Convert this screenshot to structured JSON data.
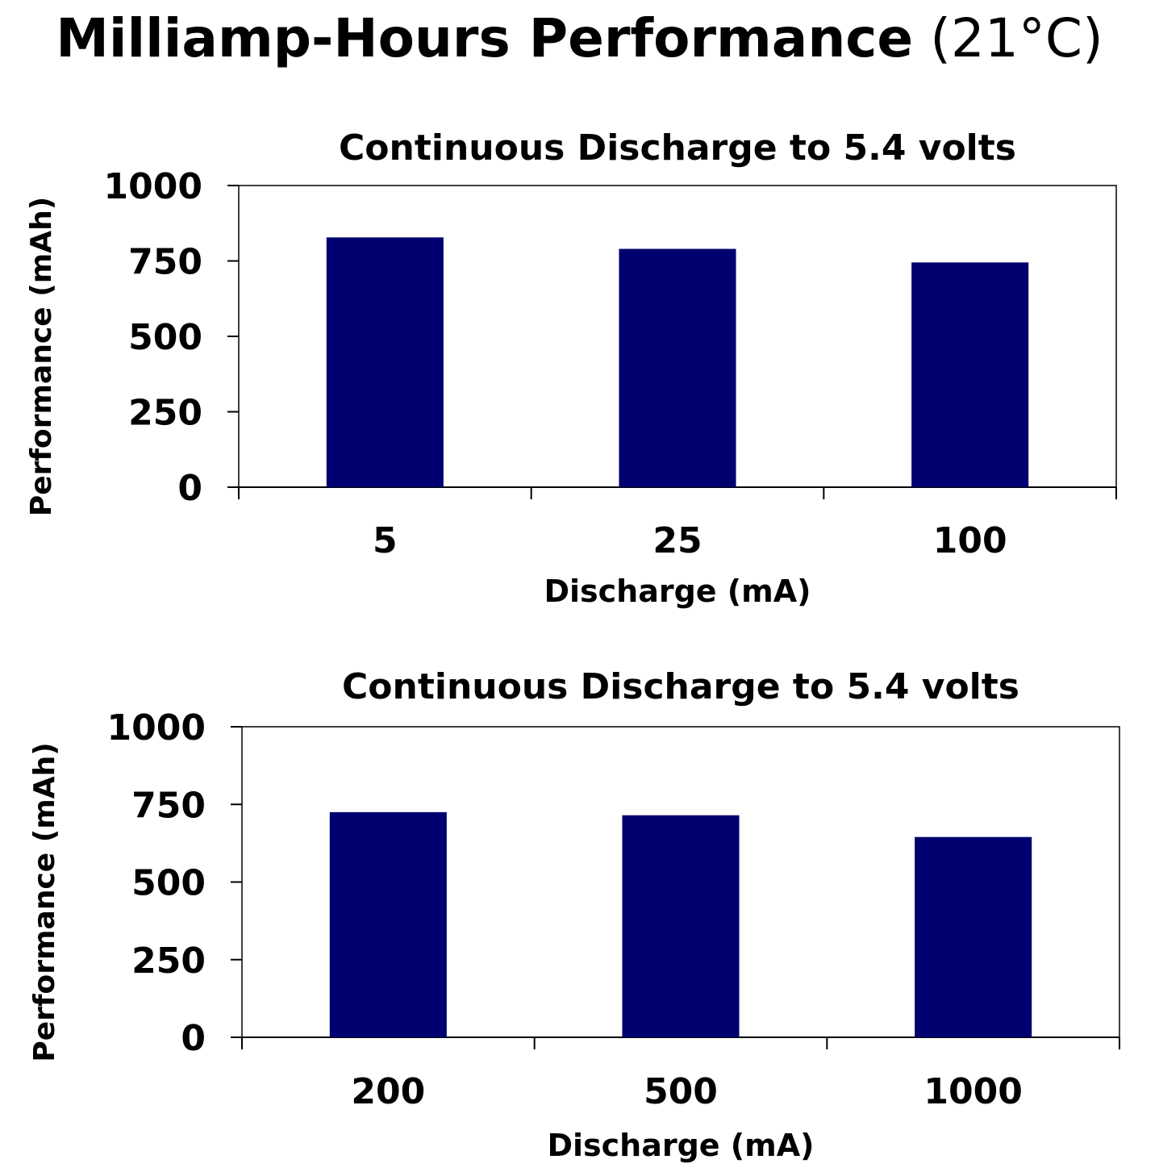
{
  "page_title": {
    "main": "Milliamp-Hours Performance",
    "suffix": "(21°C)"
  },
  "colors": {
    "bar": "#000070",
    "axis": "#000000"
  },
  "chart_data": [
    {
      "type": "bar",
      "title": "Continuous Discharge to 5.4 volts",
      "xlabel": "Discharge (mA)",
      "ylabel": "Performance (mAh)",
      "categories": [
        "5",
        "25",
        "100"
      ],
      "values": [
        828,
        790,
        745
      ],
      "ylim": [
        0,
        1000
      ],
      "yticks": [
        "0",
        "250",
        "500",
        "750",
        "1000"
      ],
      "grid": false,
      "legend": "none"
    },
    {
      "type": "bar",
      "title": "Continuous Discharge to 5.4 volts",
      "xlabel": "Discharge (mA)",
      "ylabel": "Performance (mAh)",
      "categories": [
        "200",
        "500",
        "1000"
      ],
      "values": [
        725,
        715,
        645
      ],
      "ylim": [
        0,
        1000
      ],
      "yticks": [
        "0",
        "250",
        "500",
        "750",
        "1000"
      ],
      "grid": false,
      "legend": "none"
    }
  ]
}
